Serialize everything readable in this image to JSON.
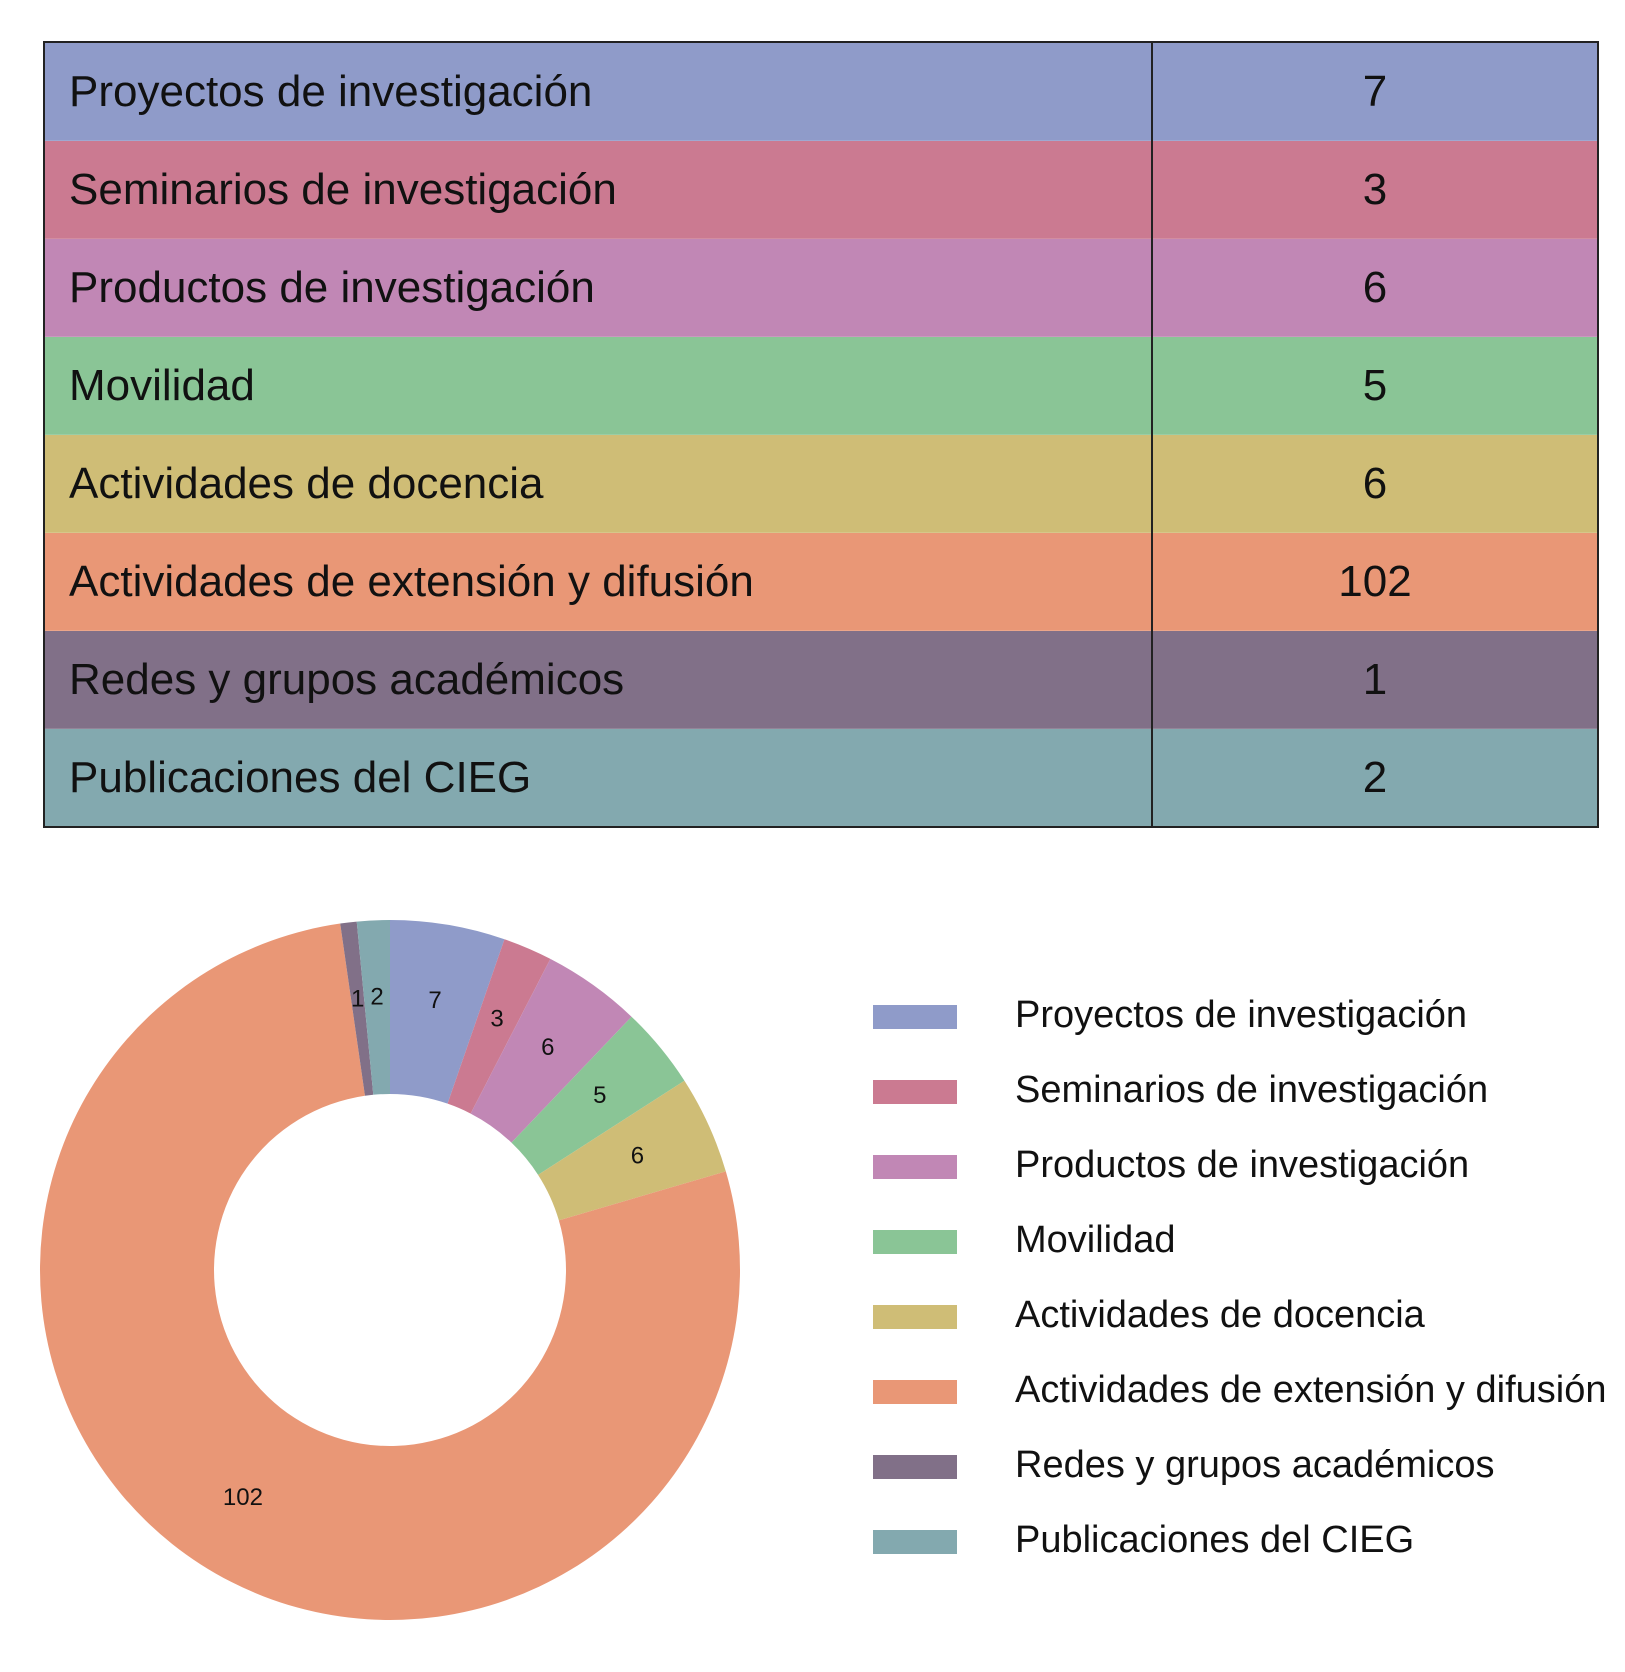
{
  "chart_data": [
    {
      "type": "table",
      "rows": [
        {
          "label": "Proyectos de investigación",
          "value": "7",
          "color": "#8F9BC9"
        },
        {
          "label": "Seminarios de investigación",
          "value": "3",
          "color": "#CB7A91"
        },
        {
          "label": "Productos de investigación",
          "value": "6",
          "color": "#C187B5"
        },
        {
          "label": "Movilidad",
          "value": "5",
          "color": "#8AC596"
        },
        {
          "label": "Actividades de docencia",
          "value": "6",
          "color": "#CFBD76"
        },
        {
          "label": "Actividades de extensión y difusión",
          "value": "102",
          "color": "#E99776"
        },
        {
          "label": "Redes y grupos académicos",
          "value": "1",
          "color": "#817088"
        },
        {
          "label": "Publicaciones del CIEG",
          "value": "2",
          "color": "#83A9AF"
        }
      ]
    },
    {
      "type": "pie",
      "style": "donut",
      "categories": [
        "Proyectos de investigación",
        "Seminarios de investigación",
        "Productos de investigación",
        "Movilidad",
        "Actividades de docencia",
        "Actividades de extensión y difusión",
        "Redes y grupos académicos",
        "Publicaciones del CIEG"
      ],
      "values": [
        7,
        3,
        6,
        5,
        6,
        102,
        1,
        2
      ],
      "colors": [
        "#8F9BC9",
        "#CB7A91",
        "#C187B5",
        "#8AC596",
        "#CFBD76",
        "#E99776",
        "#817088",
        "#83A9AF"
      ],
      "data_labels": [
        "7",
        "3",
        "6",
        "5",
        "6",
        "102",
        "1",
        "2"
      ],
      "legend": "right"
    }
  ]
}
